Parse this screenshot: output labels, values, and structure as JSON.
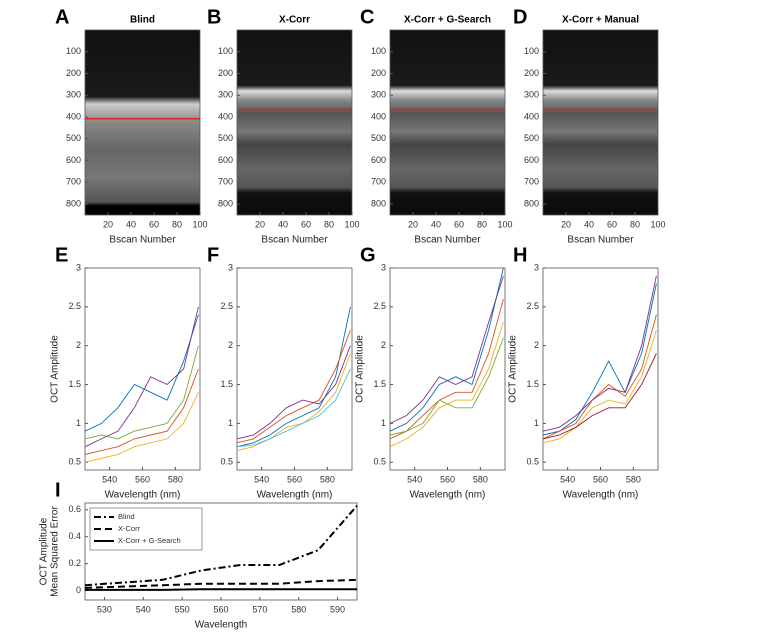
{
  "chart_data": [
    {
      "type": "image",
      "label": "A",
      "title": "Blind",
      "xlabel": "Bscan Number",
      "xlim": [
        0,
        100
      ],
      "ylim": [
        850,
        0
      ],
      "xticks": [
        20,
        40,
        60,
        80,
        100
      ],
      "yticks": [
        100,
        200,
        300,
        400,
        500,
        600,
        700,
        800
      ]
    },
    {
      "type": "image",
      "label": "B",
      "title": "X-Corr",
      "xlabel": "Bscan Number",
      "xlim": [
        0,
        100
      ],
      "ylim": [
        850,
        0
      ],
      "xticks": [
        20,
        40,
        60,
        80,
        100
      ],
      "yticks": [
        100,
        200,
        300,
        400,
        500,
        600,
        700,
        800
      ]
    },
    {
      "type": "image",
      "label": "C",
      "title": "X-Corr + G-Search",
      "xlabel": "Bscan Number",
      "xlim": [
        0,
        100
      ],
      "ylim": [
        850,
        0
      ],
      "xticks": [
        20,
        40,
        60,
        80,
        100
      ],
      "yticks": [
        100,
        200,
        300,
        400,
        500,
        600,
        700,
        800
      ]
    },
    {
      "type": "image",
      "label": "D",
      "title": "X-Corr + Manual",
      "xlabel": "Bscan Number",
      "xlim": [
        0,
        100
      ],
      "ylim": [
        850,
        0
      ],
      "xticks": [
        20,
        40,
        60,
        80,
        100
      ],
      "yticks": [
        100,
        200,
        300,
        400,
        500,
        600,
        700,
        800
      ]
    },
    {
      "type": "line",
      "label": "E",
      "xlabel": "Wavelength (nm)",
      "ylabel": "OCT Amplitude",
      "xlim": [
        525,
        595
      ],
      "ylim": [
        0.4,
        3
      ],
      "xticks": [
        540,
        560,
        580
      ],
      "yticks": [
        0.5,
        1,
        1.5,
        2,
        2.5,
        3
      ],
      "x": [
        525,
        535,
        545,
        555,
        565,
        575,
        585,
        594
      ],
      "series": [
        {
          "color": "#0072bd",
          "values": [
            0.9,
            1.0,
            1.2,
            1.5,
            1.4,
            1.3,
            1.8,
            2.4
          ]
        },
        {
          "color": "#d95319",
          "values": [
            0.6,
            0.65,
            0.7,
            0.8,
            0.85,
            0.9,
            1.2,
            1.7
          ]
        },
        {
          "color": "#edb120",
          "values": [
            0.5,
            0.55,
            0.6,
            0.7,
            0.75,
            0.8,
            1.0,
            1.4
          ]
        },
        {
          "color": "#7e2f8e",
          "values": [
            0.7,
            0.8,
            0.9,
            1.2,
            1.6,
            1.5,
            1.7,
            2.5
          ]
        },
        {
          "color": "#77ac30",
          "values": [
            0.8,
            0.85,
            0.8,
            0.9,
            0.95,
            1.0,
            1.3,
            2.0
          ]
        }
      ]
    },
    {
      "type": "line",
      "label": "F",
      "xlabel": "Wavelength (nm)",
      "xlim": [
        525,
        595
      ],
      "ylim": [
        0.4,
        3
      ],
      "xticks": [
        540,
        560,
        580
      ],
      "yticks": [
        0.5,
        1,
        1.5,
        2,
        2.5,
        3
      ],
      "x": [
        525,
        535,
        545,
        555,
        565,
        575,
        585,
        594
      ],
      "series": [
        {
          "color": "#0072bd",
          "values": [
            0.7,
            0.75,
            0.85,
            1.0,
            1.1,
            1.2,
            1.6,
            2.5
          ]
        },
        {
          "color": "#d95319",
          "values": [
            0.75,
            0.8,
            0.95,
            1.1,
            1.2,
            1.3,
            1.7,
            2.2
          ]
        },
        {
          "color": "#edb120",
          "values": [
            0.65,
            0.7,
            0.8,
            0.95,
            1.0,
            1.15,
            1.4,
            1.9
          ]
        },
        {
          "color": "#7e2f8e",
          "values": [
            0.8,
            0.85,
            1.0,
            1.2,
            1.3,
            1.25,
            1.5,
            2.0
          ]
        },
        {
          "color": "#4dbeee",
          "values": [
            0.7,
            0.72,
            0.8,
            0.9,
            1.0,
            1.1,
            1.3,
            1.7
          ]
        }
      ]
    },
    {
      "type": "line",
      "label": "G",
      "xlabel": "Wavelength (nm)",
      "ylabel": "OCT Amplitude",
      "xlim": [
        525,
        595
      ],
      "ylim": [
        0.4,
        3
      ],
      "xticks": [
        540,
        560,
        580
      ],
      "yticks": [
        0.5,
        1,
        1.5,
        2,
        2.5,
        3
      ],
      "x": [
        525,
        535,
        545,
        555,
        565,
        575,
        585,
        594
      ],
      "series": [
        {
          "color": "#0072bd",
          "values": [
            0.9,
            1.0,
            1.2,
            1.5,
            1.6,
            1.5,
            2.2,
            3.0
          ]
        },
        {
          "color": "#d95319",
          "values": [
            0.8,
            0.9,
            1.1,
            1.3,
            1.4,
            1.4,
            1.9,
            2.6
          ]
        },
        {
          "color": "#edb120",
          "values": [
            0.7,
            0.8,
            0.95,
            1.2,
            1.3,
            1.3,
            1.7,
            2.3
          ]
        },
        {
          "color": "#7e2f8e",
          "values": [
            1.0,
            1.1,
            1.3,
            1.6,
            1.5,
            1.6,
            2.3,
            2.9
          ]
        },
        {
          "color": "#77ac30",
          "values": [
            0.85,
            0.9,
            1.0,
            1.3,
            1.2,
            1.2,
            1.6,
            2.1
          ]
        }
      ]
    },
    {
      "type": "line",
      "label": "H",
      "xlabel": "Wavelength (nm)",
      "ylabel": "OCT Amplitude",
      "xlim": [
        525,
        595
      ],
      "ylim": [
        0.4,
        3
      ],
      "xticks": [
        540,
        560,
        580
      ],
      "yticks": [
        0.5,
        1,
        1.5,
        2,
        2.5,
        3
      ],
      "x": [
        525,
        535,
        545,
        555,
        565,
        575,
        585,
        594
      ],
      "series": [
        {
          "color": "#0072bd",
          "values": [
            0.85,
            0.9,
            1.05,
            1.4,
            1.8,
            1.4,
            1.9,
            2.8
          ]
        },
        {
          "color": "#d95319",
          "values": [
            0.8,
            0.9,
            1.0,
            1.3,
            1.5,
            1.35,
            1.7,
            2.4
          ]
        },
        {
          "color": "#edb120",
          "values": [
            0.75,
            0.8,
            0.95,
            1.2,
            1.3,
            1.25,
            1.6,
            2.2
          ]
        },
        {
          "color": "#7e2f8e",
          "values": [
            0.9,
            0.95,
            1.1,
            1.3,
            1.45,
            1.4,
            2.0,
            2.9
          ]
        },
        {
          "color": "#a2142f",
          "values": [
            0.8,
            0.85,
            0.95,
            1.1,
            1.2,
            1.2,
            1.5,
            1.9
          ]
        }
      ]
    },
    {
      "type": "line",
      "label": "I",
      "xlabel": "Wavelength",
      "ylabel": [
        "OCT Amplitude",
        "Mean Squared Error"
      ],
      "xlim": [
        525,
        595
      ],
      "ylim": [
        -0.07,
        0.65
      ],
      "xticks": [
        530,
        540,
        550,
        560,
        570,
        580,
        590
      ],
      "yticks": [
        0,
        0.2,
        0.4,
        0.6
      ],
      "legend": "upper left",
      "x": [
        525,
        535,
        545,
        555,
        565,
        575,
        585,
        595
      ],
      "series": [
        {
          "name": "Blind",
          "color": "#000000",
          "dash": "dashdot",
          "values": [
            0.04,
            0.06,
            0.08,
            0.15,
            0.19,
            0.19,
            0.3,
            0.63
          ]
        },
        {
          "name": "X-Corr",
          "color": "#000000",
          "dash": "dash",
          "values": [
            0.02,
            0.03,
            0.04,
            0.05,
            0.05,
            0.05,
            0.07,
            0.08
          ]
        },
        {
          "name": "X-Corr + G-Search",
          "color": "#000000",
          "dash": "solid",
          "values": [
            0.005,
            0.005,
            0.005,
            0.01,
            0.01,
            0.01,
            0.01,
            0.01
          ]
        }
      ]
    }
  ]
}
